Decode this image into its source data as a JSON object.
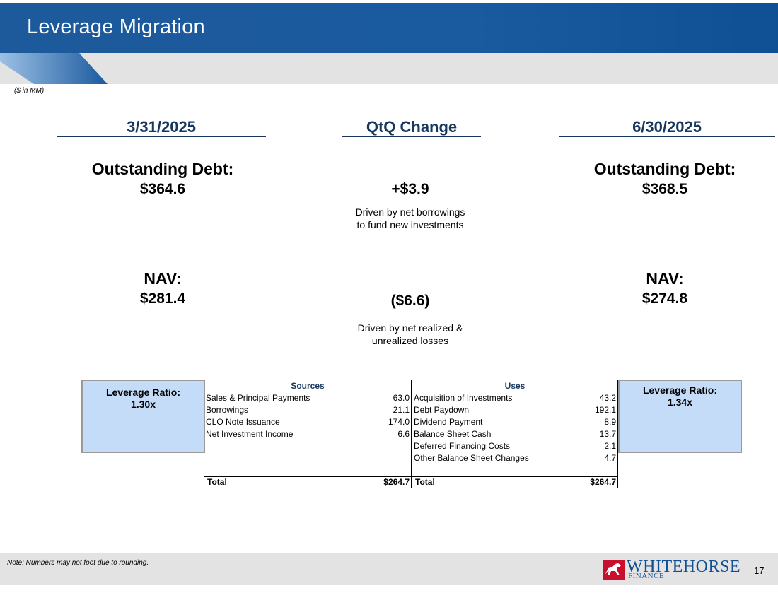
{
  "header": {
    "title": "Leverage Migration"
  },
  "units_note": "($ in MM)",
  "columns": {
    "left_date": "3/31/2025",
    "middle_title": "QtQ Change",
    "right_date": "6/30/2025"
  },
  "debt": {
    "label": "Outstanding Debt:",
    "start_value": "$364.6",
    "change_value": "+$3.9",
    "change_note_line1": "Driven by net borrowings",
    "change_note_line2": "to fund new investments",
    "end_value": "$368.5"
  },
  "nav": {
    "label": "NAV:",
    "start_value": "$281.4",
    "change_value": "($6.6)",
    "change_note_line1": "Driven by net realized &",
    "change_note_line2": "unrealized losses",
    "end_value": "$274.8"
  },
  "leverage": {
    "left_label": "Leverage Ratio:",
    "left_value": "1.30x",
    "right_label": "Leverage Ratio:",
    "right_value": "1.34x"
  },
  "sources_uses": {
    "sources_header": "Sources",
    "uses_header": "Uses",
    "sources": [
      {
        "label": "Sales & Principal Payments",
        "value": "63.0"
      },
      {
        "label": "Borrowings",
        "value": "21.1"
      },
      {
        "label": "CLO Note Issuance",
        "value": "174.0"
      },
      {
        "label": "Net Investment Income",
        "value": "6.6"
      }
    ],
    "uses": [
      {
        "label": "Acquisition of Investments",
        "value": "43.2"
      },
      {
        "label": "Debt Paydown",
        "value": "192.1"
      },
      {
        "label": "Dividend Payment",
        "value": "8.9"
      },
      {
        "label": "Balance Sheet Cash",
        "value": "13.7"
      },
      {
        "label": "Deferred Financing Costs",
        "value": "2.1"
      },
      {
        "label": "Other Balance Sheet Changes",
        "value": "4.7"
      }
    ],
    "sources_total_label": "Total",
    "sources_total_value": "$264.7",
    "uses_total_label": "Total",
    "uses_total_value": "$264.7"
  },
  "footer": {
    "note": "Note: Numbers may not foot due to rounding.",
    "logo_word": "WHITEHORSE",
    "logo_sub": "FINANCE",
    "page_number": "17"
  },
  "colors": {
    "brand_blue": "#1a5a9e",
    "navy": "#17375e",
    "box_blue": "#c5dcf9"
  }
}
